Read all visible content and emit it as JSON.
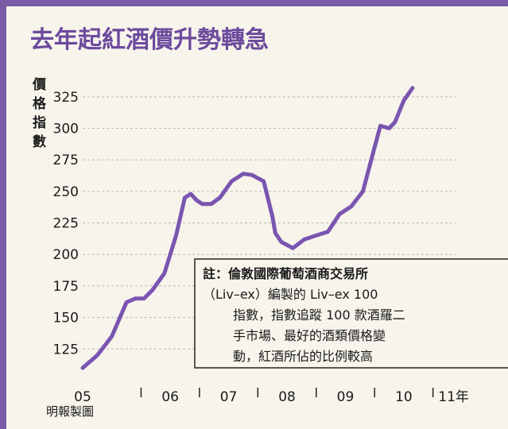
{
  "chart_data": {
    "type": "line",
    "title": "去年起紅酒價升勢轉急",
    "ylabel": "價格指數",
    "y_ticks": [
      125,
      150,
      175,
      200,
      225,
      250,
      275,
      300,
      325
    ],
    "ylim": [
      105,
      335
    ],
    "x_tick_labels": [
      "05",
      "06",
      "07",
      "08",
      "09",
      "10",
      "11年"
    ],
    "xlim": [
      2005.0,
      2011.4
    ],
    "series": [
      {
        "color": "#7a55b0",
        "x": [
          2005.0,
          2005.25,
          2005.5,
          2005.75,
          2005.9,
          2006.05,
          2006.2,
          2006.4,
          2006.6,
          2006.75,
          2006.85,
          2006.95,
          2007.05,
          2007.2,
          2007.35,
          2007.55,
          2007.75,
          2007.9,
          2008.1,
          2008.25,
          2008.3,
          2008.4,
          2008.6,
          2008.8,
          2009.0,
          2009.2,
          2009.4,
          2009.6,
          2009.8,
          2010.0,
          2010.1,
          2010.25,
          2010.35,
          2010.5,
          2010.65
        ],
        "y": [
          110,
          120,
          135,
          162,
          165,
          165,
          172,
          185,
          215,
          245,
          248,
          243,
          240,
          240,
          245,
          258,
          264,
          263,
          258,
          230,
          217,
          210,
          205,
          212,
          215,
          218,
          232,
          238,
          250,
          285,
          302,
          300,
          305,
          322,
          332
        ]
      }
    ]
  },
  "note": {
    "lines": [
      "註：倫敦國際葡萄酒商交易所",
      "（Liv–ex）編製的 Liv–ex 100",
      "指數，指數追蹤 100 款酒羅二",
      "手市場、最好的酒類價格變",
      "動，紅酒所佔的比例較高"
    ]
  },
  "source": "明報製圖",
  "colors": {
    "frame": "#7b5aa6",
    "title": "#6c4a9c",
    "background": "#f7f4ec"
  }
}
